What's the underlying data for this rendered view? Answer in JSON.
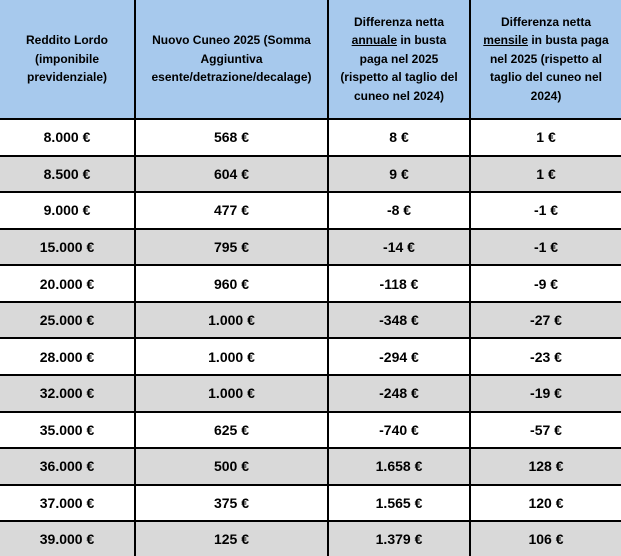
{
  "colors": {
    "header_bg": "#a7c9ed",
    "row_bg": "#ffffff",
    "alt_row_bg": "#d9d9d9",
    "border": "#000000",
    "text": "#000000"
  },
  "table": {
    "headers": [
      {
        "pre": "Reddito Lordo (imponibile previdenziale)",
        "u": "",
        "post": ""
      },
      {
        "pre": "Nuovo Cuneo 2025 (Somma Aggiuntiva esente/detrazione/decalage)",
        "u": "",
        "post": ""
      },
      {
        "pre": "Differenza netta ",
        "u": "annuale",
        "post": " in busta paga nel 2025 (rispetto al taglio del cuneo nel 2024)"
      },
      {
        "pre": "Differenza netta ",
        "u": "mensile",
        "post": " in busta paga nel 2025 (rispetto al taglio del cuneo nel 2024)"
      }
    ]
  },
  "chart_data": {
    "type": "table",
    "columns": [
      "Reddito Lordo (imponibile previdenziale)",
      "Nuovo Cuneo 2025 (Somma Aggiuntiva esente/detrazione/decalage)",
      "Differenza netta annuale in busta paga nel 2025 (rispetto al taglio del cuneo nel 2024)",
      "Differenza netta mensile in busta paga nel 2025 (rispetto al taglio del cuneo nel 2024)"
    ],
    "rows": [
      [
        "8.000 €",
        "568 €",
        "8 €",
        "1 €"
      ],
      [
        "8.500 €",
        "604 €",
        "9 €",
        "1 €"
      ],
      [
        "9.000 €",
        "477 €",
        "-8 €",
        "-1 €"
      ],
      [
        "15.000 €",
        "795 €",
        "-14 €",
        "-1 €"
      ],
      [
        "20.000 €",
        "960 €",
        "-118 €",
        "-9 €"
      ],
      [
        "25.000 €",
        "1.000 €",
        "-348 €",
        "-27 €"
      ],
      [
        "28.000 €",
        "1.000 €",
        "-294 €",
        "-23 €"
      ],
      [
        "32.000 €",
        "1.000 €",
        "-248 €",
        "-19 €"
      ],
      [
        "35.000 €",
        "625 €",
        "-740 €",
        "-57 €"
      ],
      [
        "36.000 €",
        "500 €",
        "1.658 €",
        "128 €"
      ],
      [
        "37.000 €",
        "375 €",
        "1.565 €",
        "120 €"
      ],
      [
        "39.000 €",
        "125 €",
        "1.379 €",
        "106 €"
      ]
    ]
  }
}
